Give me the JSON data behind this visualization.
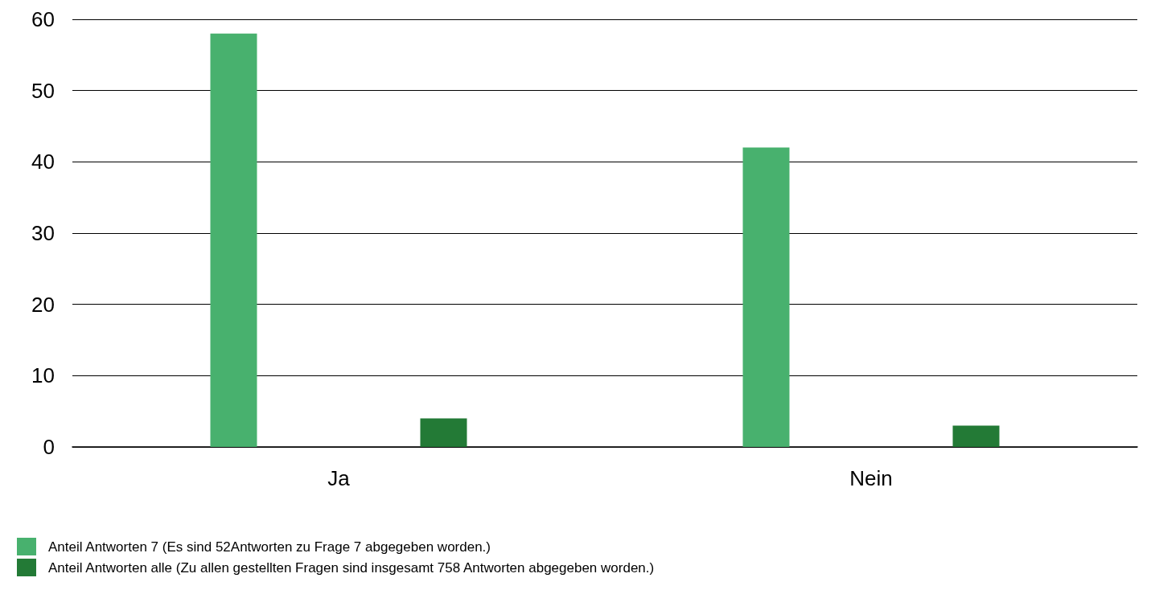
{
  "chart_data": {
    "type": "bar",
    "categories": [
      "Ja",
      "Nein"
    ],
    "series": [
      {
        "name": "Anteil Antworten 7 (Es sind 52Antworten zu Frage 7 abgegeben worden.)",
        "color": "#48b16e",
        "values": [
          58,
          42
        ]
      },
      {
        "name": "Anteil Antworten alle (Zu allen gestellten Fragen sind insgesamt 758 Antworten abgegeben worden.)",
        "color": "#237a36",
        "values": [
          4,
          3
        ]
      }
    ],
    "ylim": [
      0,
      60
    ],
    "yticks": [
      0,
      10,
      20,
      30,
      40,
      50,
      60
    ],
    "grid": "y",
    "legend": "bottom left"
  }
}
